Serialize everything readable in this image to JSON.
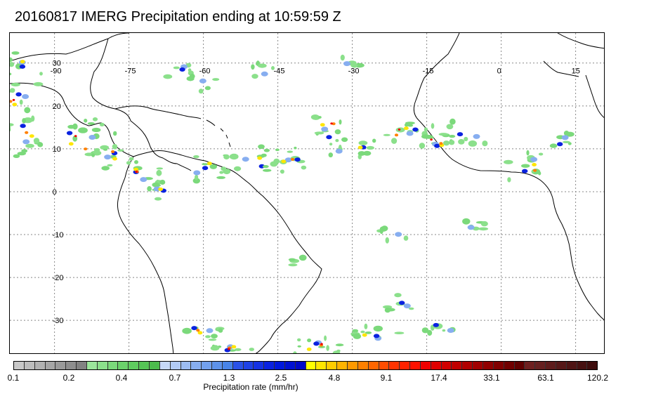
{
  "title": "20160817 IMERG Precipitation ending at 10:59:59 Z",
  "map": {
    "lon_range": [
      -99,
      21
    ],
    "lat_range": [
      -38,
      37
    ],
    "longitude_labels": [
      "-90",
      "-75",
      "-60",
      "-45",
      "-30",
      "-15",
      "0",
      "15"
    ],
    "latitude_labels": [
      "30",
      "20",
      "10",
      "0",
      "-10",
      "-20",
      "-30"
    ],
    "gridlines": true,
    "coastline_color": "#000000"
  },
  "colorbar": {
    "title": "Precipitation rate (mm/hr)",
    "labels": [
      "0.1",
      "0.2",
      "0.4",
      "0.7",
      "1.3",
      "2.5",
      "4.8",
      "9.1",
      "17.4",
      "33.1",
      "63.1",
      "120.2"
    ],
    "colors": [
      "#c8c8c8",
      "#bdbdbd",
      "#b2b2b2",
      "#a6a6a6",
      "#9a9a9a",
      "#8e8e8e",
      "#828282",
      "#9be69b",
      "#8be08b",
      "#7bd97b",
      "#6bd26b",
      "#5fcc5f",
      "#55c455",
      "#4dbb4d",
      "#c6d8f8",
      "#b1caf5",
      "#9cbcf2",
      "#87aef0",
      "#72a0ed",
      "#5d92ea",
      "#4884e8",
      "#2a52e8",
      "#1f42e6",
      "#1532e3",
      "#0a22e0",
      "#0018dc",
      "#0010d2",
      "#0008c8",
      "#ffff00",
      "#ffe600",
      "#ffcc00",
      "#ffb300",
      "#ff9900",
      "#ff8000",
      "#ff6600",
      "#ff4d00",
      "#ff3300",
      "#ff2200",
      "#ff1100",
      "#f00000",
      "#e00000",
      "#d00000",
      "#c00000",
      "#b00000",
      "#a00000",
      "#900000",
      "#800000",
      "#700000",
      "#600000",
      "#6e2020",
      "#662020",
      "#5e1c1c",
      "#561818",
      "#4e1414",
      "#461010",
      "#3e0c0c"
    ]
  }
}
